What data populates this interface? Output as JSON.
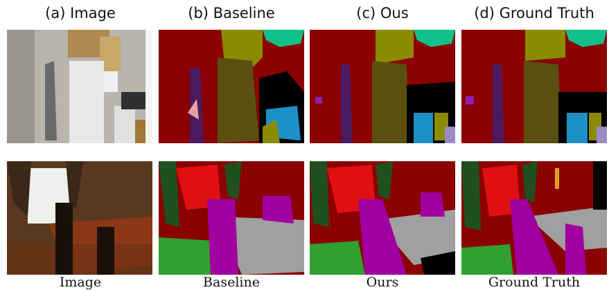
{
  "column_headers": [
    "(a) Image",
    "(b) Baseline",
    "(c) Ous",
    "(d) Ground Truth"
  ],
  "column_footers": [
    "Image",
    "Baseline",
    "Ours",
    "Ground Truth"
  ]
}
